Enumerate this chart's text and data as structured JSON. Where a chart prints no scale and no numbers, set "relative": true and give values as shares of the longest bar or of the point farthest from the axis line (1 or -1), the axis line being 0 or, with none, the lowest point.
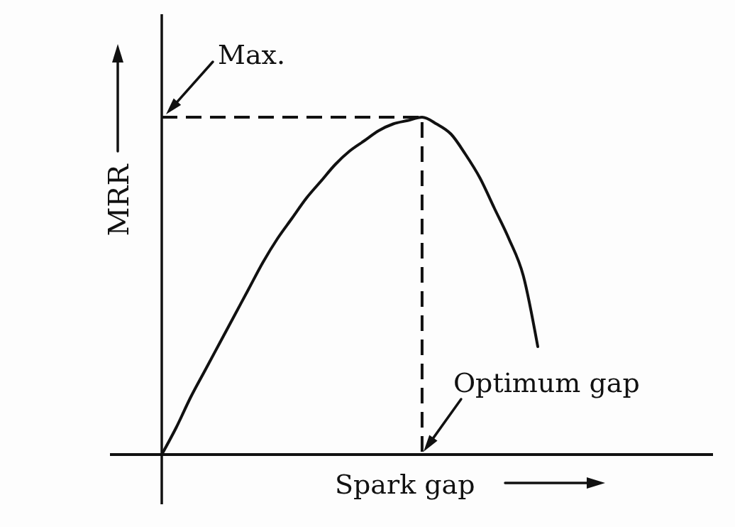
{
  "chart_data": {
    "type": "line",
    "xlabel": "Spark gap",
    "ylabel": "MRR",
    "relative": true,
    "categories": [
      null,
      null,
      null,
      null,
      null,
      null,
      null,
      null,
      null,
      null,
      null,
      null,
      null,
      null,
      null,
      null,
      null,
      null,
      null,
      null,
      null,
      null,
      null,
      null,
      null,
      null,
      null
    ],
    "series": [
      {
        "color": "#111111",
        "values": [
          0,
          0.08,
          0.17,
          0.25,
          0.33,
          0.41,
          0.49,
          0.57,
          0.64,
          0.7,
          0.76,
          0.81,
          0.86,
          0.9,
          0.93,
          0.96,
          0.98,
          0.99,
          1,
          0.98,
          0.95,
          0.89,
          0.82,
          0.73,
          0.64,
          0.53,
          0.32
        ]
      }
    ],
    "ref_lines": [
      {
        "axis": "y",
        "value": 1,
        "label": "Max.",
        "line_style": "dashed",
        "color": "#111111"
      }
    ],
    "annotations": [
      "Optimum gap"
    ]
  }
}
